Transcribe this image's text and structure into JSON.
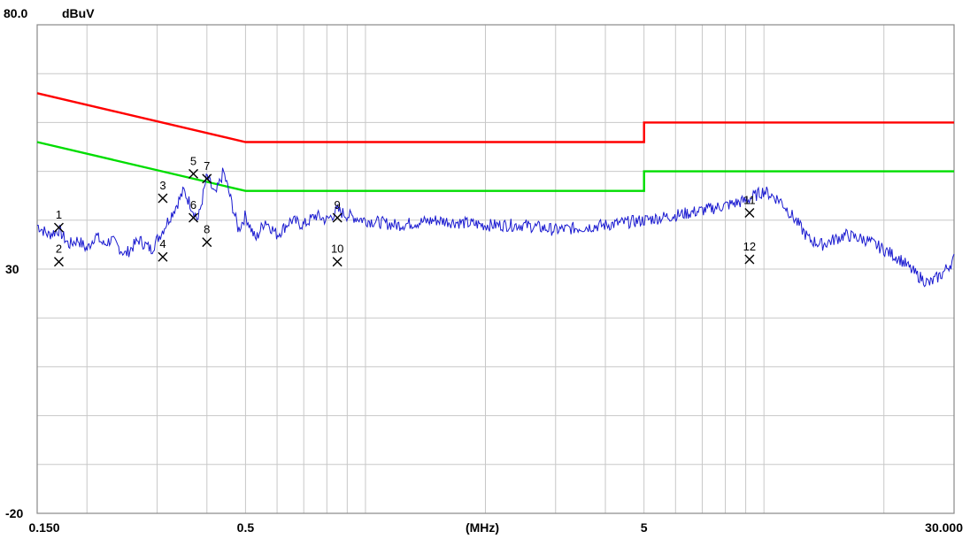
{
  "chart_data": {
    "type": "line",
    "title": "",
    "y_top_label": "80.0",
    "y_unit_label": "dBuV",
    "y_tick_labels": [
      {
        "value": 30,
        "label": "30"
      },
      {
        "value": -20,
        "label": "-20"
      }
    ],
    "x_tick_labels": [
      {
        "value": 0.15,
        "label": "0.150"
      },
      {
        "value": 0.5,
        "label": "0.5"
      },
      {
        "value": 5,
        "label": "5"
      },
      {
        "value": 30,
        "label": "30.000"
      }
    ],
    "x_unit_label": "(MHz)",
    "x_scale": "log",
    "xlim": [
      0.15,
      30
    ],
    "ylim": [
      -20,
      80
    ],
    "grid": true,
    "series": [
      {
        "color": "#ff0000",
        "x": [
          0.15,
          0.5,
          0.5,
          5,
          5,
          30
        ],
        "y": [
          66,
          56,
          56,
          56,
          60,
          60
        ]
      },
      {
        "color": "#00dd00",
        "x": [
          0.15,
          0.5,
          0.5,
          5,
          5,
          30
        ],
        "y": [
          56,
          46,
          46,
          46,
          50,
          50
        ]
      },
      {
        "color": "#1a1ad0",
        "x": [
          0.15,
          0.16,
          0.17,
          0.18,
          0.19,
          0.2,
          0.21,
          0.22,
          0.23,
          0.25,
          0.27,
          0.29,
          0.31,
          0.33,
          0.35,
          0.36,
          0.38,
          0.4,
          0.42,
          0.44,
          0.46,
          0.48,
          0.5,
          0.53,
          0.56,
          0.6,
          0.65,
          0.7,
          0.75,
          0.8,
          0.85,
          0.9,
          1.0,
          1.2,
          1.5,
          2.0,
          2.5,
          3.0,
          4.0,
          5.0,
          6.0,
          7.0,
          8.0,
          9.0,
          10.0,
          11.0,
          12.0,
          13.0,
          14.0,
          16.0,
          18.0,
          20.0,
          22.0,
          24.0,
          26.0,
          28.0,
          30.0
        ],
        "y": [
          39,
          37,
          38,
          35,
          36,
          34,
          37,
          35,
          36,
          33,
          36,
          34,
          38,
          42,
          46,
          44,
          40,
          49,
          45,
          50,
          44,
          38,
          41,
          36,
          40,
          37,
          40,
          39,
          41,
          40,
          42,
          41,
          40,
          39,
          40,
          39,
          39,
          38,
          39,
          40,
          41,
          42,
          43,
          44,
          46,
          44,
          40,
          36,
          35,
          37,
          36,
          34,
          32,
          29,
          27,
          29,
          32
        ]
      }
    ],
    "markers": [
      {
        "label": "1",
        "x": 0.17,
        "y": 38.5
      },
      {
        "label": "2",
        "x": 0.17,
        "y": 31.5
      },
      {
        "label": "3",
        "x": 0.31,
        "y": 44.5
      },
      {
        "label": "4",
        "x": 0.31,
        "y": 32.5
      },
      {
        "label": "5",
        "x": 0.37,
        "y": 49.5
      },
      {
        "label": "6",
        "x": 0.37,
        "y": 40.5
      },
      {
        "label": "7",
        "x": 0.4,
        "y": 48.5
      },
      {
        "label": "8",
        "x": 0.4,
        "y": 35.5
      },
      {
        "label": "9",
        "x": 0.85,
        "y": 40.5
      },
      {
        "label": "10",
        "x": 0.85,
        "y": 31.5
      },
      {
        "label": "11",
        "x": 9.2,
        "y": 41.5
      },
      {
        "label": "12",
        "x": 9.2,
        "y": 32.0
      }
    ]
  }
}
